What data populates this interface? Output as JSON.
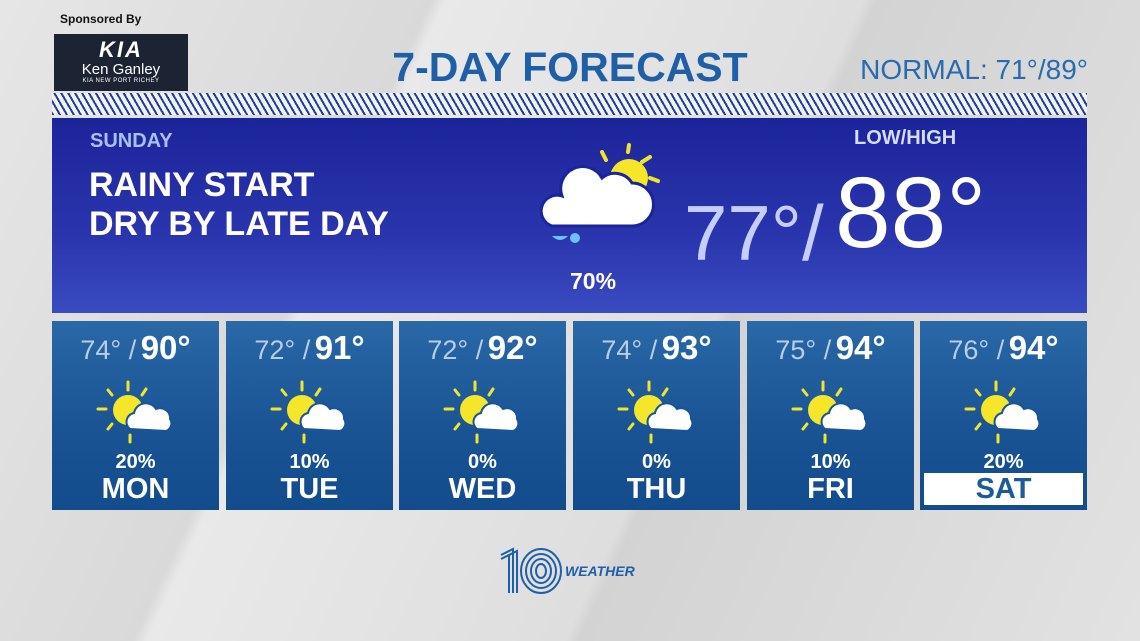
{
  "sponsor": {
    "label": "Sponsored By",
    "logo_mark": "KIA",
    "logo_name": "Ken Ganley",
    "logo_sub": "KIA NEW PORT RICHEY"
  },
  "header": {
    "title": "7-DAY FORECAST",
    "normal": "NORMAL: 71°/89°"
  },
  "today": {
    "day": "SUNDAY",
    "line1": "RAINY START",
    "line2": "DRY BY LATE DAY",
    "icon": "rain-cloud-sun-icon",
    "precip": "70%",
    "lowhigh_label": "LOW/HIGH",
    "low": "77°/",
    "high": "88°"
  },
  "days": [
    {
      "name": "MON",
      "low": "74° /",
      "high": "90°",
      "precip": "20%",
      "icon": "partly-sunny-icon"
    },
    {
      "name": "TUE",
      "low": "72° /",
      "high": "91°",
      "precip": "10%",
      "icon": "partly-sunny-icon"
    },
    {
      "name": "WED",
      "low": "72° /",
      "high": "92°",
      "precip": "0%",
      "icon": "partly-sunny-icon"
    },
    {
      "name": "THU",
      "low": "74° /",
      "high": "93°",
      "precip": "0%",
      "icon": "partly-sunny-icon"
    },
    {
      "name": "FRI",
      "low": "75° /",
      "high": "94°",
      "precip": "10%",
      "icon": "partly-sunny-icon"
    },
    {
      "name": "SAT",
      "low": "76° /",
      "high": "94°",
      "precip": "20%",
      "icon": "partly-sunny-icon",
      "selected": true
    }
  ],
  "brand": {
    "number": "10",
    "word": "WEATHER"
  },
  "colors": {
    "title": "#1f5fa8",
    "panel": "#1c249a",
    "card": "#1a5494",
    "sun": "#f5e62a"
  }
}
